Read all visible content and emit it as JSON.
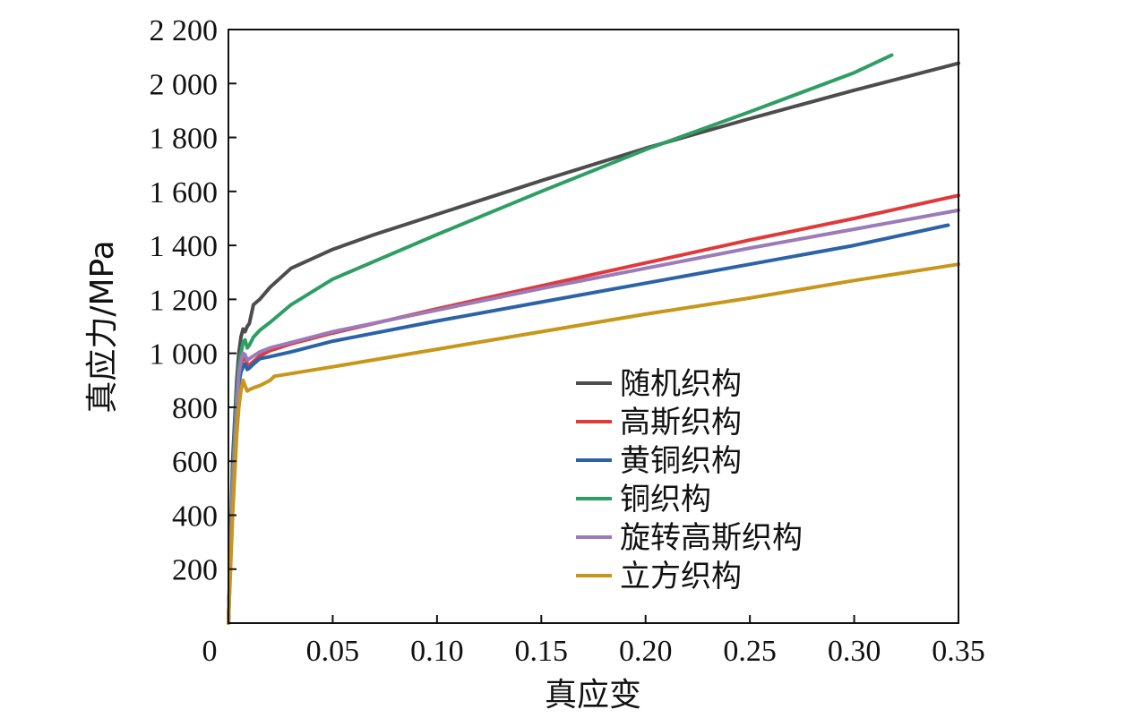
{
  "chart_data": {
    "type": "line",
    "title": "",
    "xlabel": "真应变",
    "ylabel": "真应力/MPa",
    "xlim": [
      0,
      0.35
    ],
    "ylim": [
      0,
      2200
    ],
    "x_tick_labels": [
      "0",
      "0.05",
      "0.10",
      "0.15",
      "0.20",
      "0.25",
      "0.30",
      "0.35"
    ],
    "x_tick_values": [
      0,
      0.05,
      0.1,
      0.15,
      0.2,
      0.25,
      0.3,
      0.35
    ],
    "y_tick_labels": [
      "200",
      "400",
      "600",
      "800",
      "1 000",
      "1 200",
      "1 400",
      "1 600",
      "1 800",
      "2 000",
      "2 200"
    ],
    "y_tick_values": [
      200,
      400,
      600,
      800,
      1000,
      1200,
      1400,
      1600,
      1800,
      2000,
      2200
    ],
    "legend_position": "center-right",
    "grid": false,
    "series": [
      {
        "name": "随机织构",
        "color": "#4d4d4d",
        "x": [
          0,
          0.002,
          0.004,
          0.005,
          0.006,
          0.007,
          0.008,
          0.009,
          0.01,
          0.012,
          0.015,
          0.02,
          0.03,
          0.05,
          0.07,
          0.1,
          0.15,
          0.2,
          0.25,
          0.3,
          0.35
        ],
        "y": [
          0,
          600,
          900,
          1000,
          1060,
          1090,
          1080,
          1100,
          1110,
          1180,
          1200,
          1245,
          1315,
          1385,
          1440,
          1515,
          1640,
          1760,
          1870,
          1975,
          2075
        ]
      },
      {
        "name": "高斯织构",
        "color": "#e0393b",
        "x": [
          0,
          0.002,
          0.004,
          0.005,
          0.006,
          0.007,
          0.008,
          0.009,
          0.01,
          0.012,
          0.015,
          0.02,
          0.03,
          0.05,
          0.1,
          0.15,
          0.2,
          0.25,
          0.3,
          0.35
        ],
        "y": [
          0,
          500,
          800,
          900,
          950,
          980,
          990,
          960,
          955,
          970,
          990,
          1010,
          1035,
          1075,
          1165,
          1250,
          1335,
          1420,
          1500,
          1585
        ]
      },
      {
        "name": "黄铜织构",
        "color": "#2b63a8",
        "x": [
          0,
          0.002,
          0.004,
          0.005,
          0.006,
          0.007,
          0.008,
          0.009,
          0.01,
          0.012,
          0.015,
          0.02,
          0.03,
          0.05,
          0.1,
          0.15,
          0.2,
          0.25,
          0.3,
          0.345
        ],
        "y": [
          0,
          500,
          800,
          890,
          930,
          950,
          960,
          940,
          945,
          960,
          980,
          988,
          1005,
          1045,
          1120,
          1190,
          1260,
          1330,
          1400,
          1475
        ]
      },
      {
        "name": "铜织构",
        "color": "#2f9e64",
        "x": [
          0,
          0.002,
          0.004,
          0.005,
          0.006,
          0.007,
          0.008,
          0.009,
          0.01,
          0.012,
          0.015,
          0.02,
          0.03,
          0.05,
          0.1,
          0.15,
          0.2,
          0.25,
          0.3,
          0.318
        ],
        "y": [
          0,
          550,
          850,
          950,
          1000,
          1040,
          1050,
          1020,
          1030,
          1060,
          1085,
          1115,
          1180,
          1275,
          1440,
          1600,
          1755,
          1895,
          2040,
          2105
        ]
      },
      {
        "name": "旋转高斯织构",
        "color": "#9b7bb9",
        "x": [
          0,
          0.002,
          0.004,
          0.005,
          0.006,
          0.007,
          0.008,
          0.009,
          0.01,
          0.012,
          0.015,
          0.02,
          0.03,
          0.05,
          0.1,
          0.15,
          0.2,
          0.25,
          0.3,
          0.35
        ],
        "y": [
          0,
          500,
          800,
          920,
          970,
          1000,
          995,
          975,
          980,
          990,
          1005,
          1020,
          1040,
          1080,
          1160,
          1240,
          1315,
          1390,
          1460,
          1530
        ]
      },
      {
        "name": "立方织构",
        "color": "#c8961a",
        "x": [
          0,
          0.002,
          0.004,
          0.005,
          0.006,
          0.007,
          0.008,
          0.009,
          0.01,
          0.012,
          0.015,
          0.02,
          0.022,
          0.05,
          0.1,
          0.15,
          0.2,
          0.25,
          0.3,
          0.35
        ],
        "y": [
          0,
          400,
          700,
          800,
          860,
          900,
          880,
          860,
          865,
          872,
          880,
          900,
          915,
          950,
          1015,
          1080,
          1145,
          1205,
          1270,
          1330
        ]
      }
    ]
  }
}
